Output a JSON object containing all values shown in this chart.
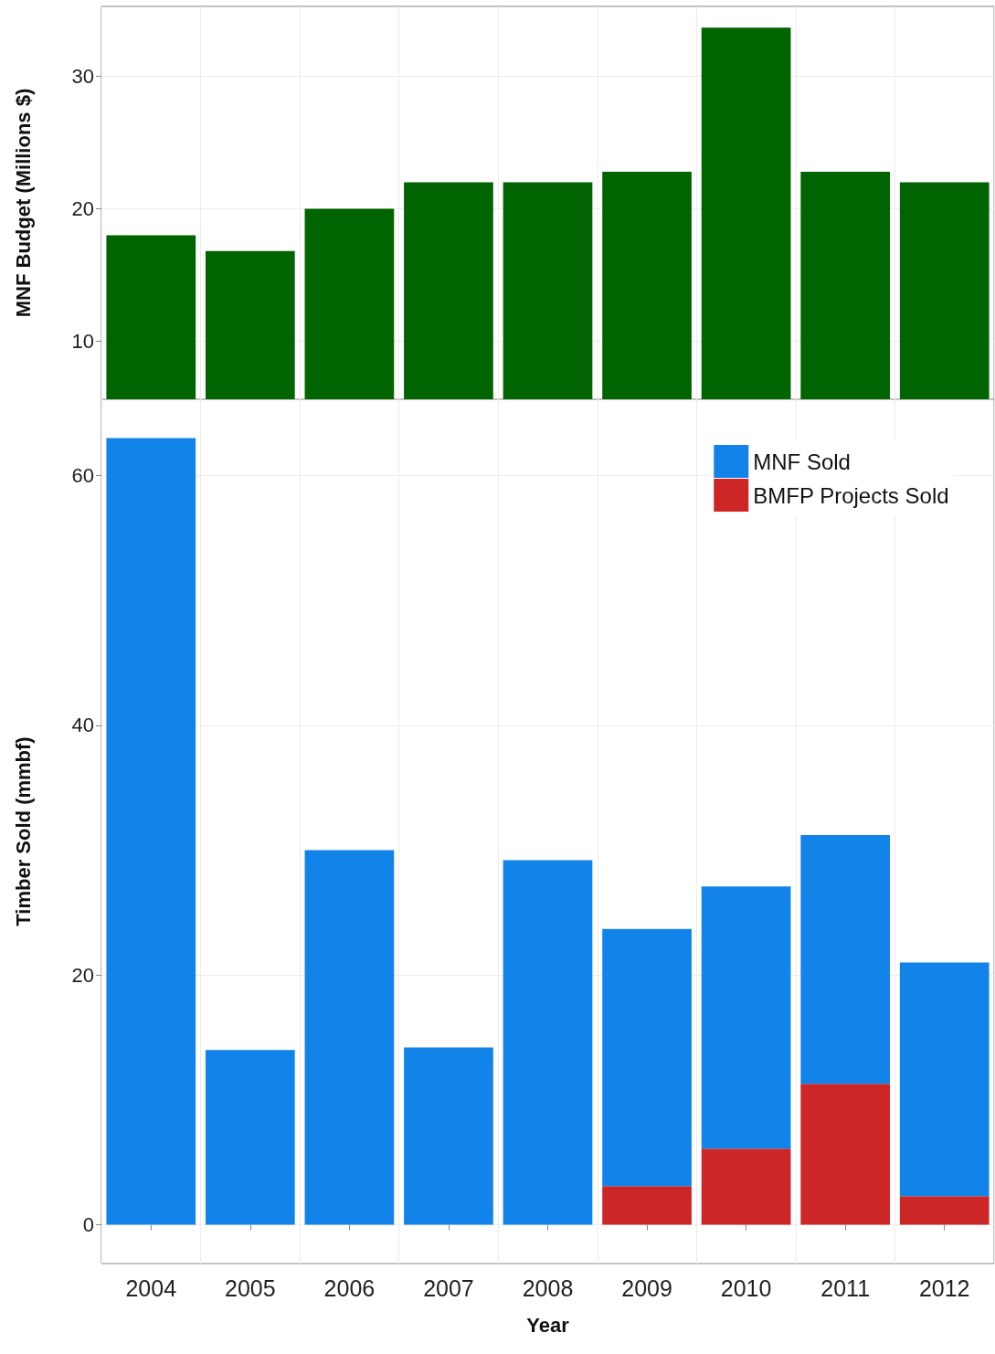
{
  "chart_data": [
    {
      "type": "bar",
      "ylabel": "MNF Budget (Millions $)",
      "categories": [
        "2004",
        "2005",
        "2006",
        "2007",
        "2008",
        "2009",
        "2010",
        "2011",
        "2012"
      ],
      "values": [
        18,
        16.8,
        20,
        22,
        22,
        22.8,
        33.7,
        22.8,
        22
      ],
      "color": "#006400",
      "ylim": [
        5.6,
        35.3
      ],
      "yticks": [
        10,
        20,
        30
      ],
      "grid": true,
      "tick_labels": "y"
    },
    {
      "type": "bar",
      "xlabel": "Year",
      "ylabel": "Timber Sold (mmbf)",
      "categories": [
        "2004",
        "2005",
        "2006",
        "2007",
        "2008",
        "2009",
        "2010",
        "2011",
        "2012"
      ],
      "stacked": true,
      "series": [
        {
          "name": "BMFP Projects Sold",
          "color": "#cc2626",
          "values": [
            null,
            null,
            null,
            null,
            null,
            3.1,
            6.1,
            11.3,
            2.3
          ]
        },
        {
          "name": "MNF Sold",
          "color": "#1283e8",
          "values": [
            63.0,
            14.0,
            30.0,
            14.2,
            29.2,
            20.6,
            21.0,
            19.9,
            18.7
          ]
        }
      ],
      "ylim": [
        -3.1,
        66.1
      ],
      "yticks": [
        0,
        20,
        40,
        60
      ],
      "grid": true,
      "legend": "top right"
    }
  ]
}
